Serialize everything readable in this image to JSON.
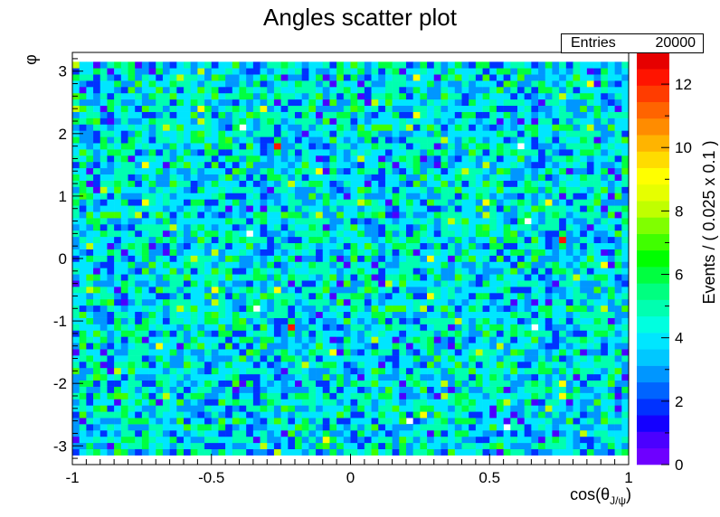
{
  "chart_data": {
    "type": "heatmap",
    "title": "Angles scatter plot",
    "xlabel_main": "cos(θ",
    "xlabel_sub": "J/ψ",
    "xlabel_close": ")",
    "ylabel": "φ",
    "zlabel": "Events / ( 0.025 x 0.1 )",
    "xlim": [
      -1,
      1
    ],
    "ylim": [
      -3.3,
      3.3
    ],
    "zlim": [
      0,
      13
    ],
    "x_ticks": [
      -1,
      -0.5,
      0,
      0.5,
      1
    ],
    "x_tick_labels": [
      "-1",
      "-0.5",
      "0",
      "0.5",
      "1"
    ],
    "y_ticks": [
      -3,
      -2,
      -1,
      0,
      1,
      2,
      3
    ],
    "y_tick_labels": [
      "-3",
      "-2",
      "-1",
      "0",
      "1",
      "2",
      "3"
    ],
    "z_ticks": [
      0,
      2,
      4,
      6,
      8,
      10,
      12
    ],
    "z_tick_labels": [
      "0",
      "2",
      "4",
      "6",
      "8",
      "10",
      "12"
    ],
    "x_bins": 80,
    "y_bins": 63,
    "y_data_range": [
      -3.15,
      3.15
    ],
    "entries_label": "Entries",
    "entries": "20000",
    "palette": [
      "#6e00ff",
      "#4b00ff",
      "#1400ff",
      "#0032ff",
      "#0064ff",
      "#0096ff",
      "#00c8ff",
      "#00e6ff",
      "#00ffe0",
      "#00ffb0",
      "#00ff80",
      "#00ff40",
      "#00ff00",
      "#40ff00",
      "#80ff00",
      "#c0ff00",
      "#e6ff00",
      "#ffff00",
      "#ffdc00",
      "#ffb400",
      "#ff8c00",
      "#ff6400",
      "#ff3c00",
      "#ff1400",
      "#e60000"
    ]
  }
}
